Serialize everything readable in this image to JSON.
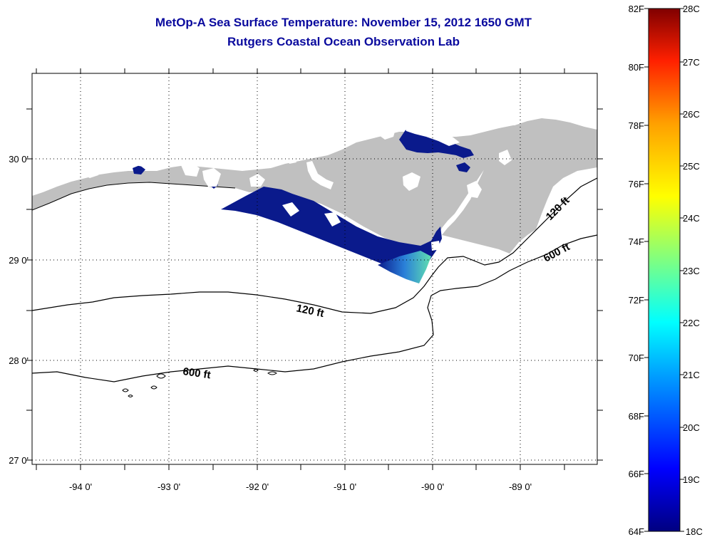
{
  "header": {
    "title": "MetOp-A Sea Surface Temperature:  November 15, 2012 1650 GMT",
    "subtitle": "Rutgers Coastal Ocean Observation Lab"
  },
  "map": {
    "lon_labels": [
      "-94 0'",
      "-93 0'",
      "-92 0'",
      "-91 0'",
      "-90 0'",
      "-89 0'"
    ],
    "lat_labels": [
      "30 0'",
      "29 0'",
      "28 0'",
      "27 0'"
    ],
    "contour_labels": {
      "c120_offshore": "120 ft",
      "c120_east": "120 ft",
      "c600_west": "600 ft",
      "c600_east": "600 ft"
    },
    "colors": {
      "land": "#c0c0c0",
      "cold_sst": "#0a1a8c",
      "warm_patch": "#4fd0c8"
    }
  },
  "colorbar": {
    "fahrenheit_labels": [
      "82F",
      "80F",
      "78F",
      "76F",
      "74F",
      "72F",
      "70F",
      "68F",
      "66F",
      "64F"
    ],
    "celsius_labels": [
      "28C",
      "27C",
      "26C",
      "25C",
      "24C",
      "23C",
      "22C",
      "21C",
      "20C",
      "19C",
      "18C"
    ],
    "colors": [
      "#000080",
      "#0000ff",
      "#00a0ff",
      "#00ffff",
      "#80ff80",
      "#ffff00",
      "#ffa000",
      "#ff2000",
      "#800000"
    ]
  }
}
